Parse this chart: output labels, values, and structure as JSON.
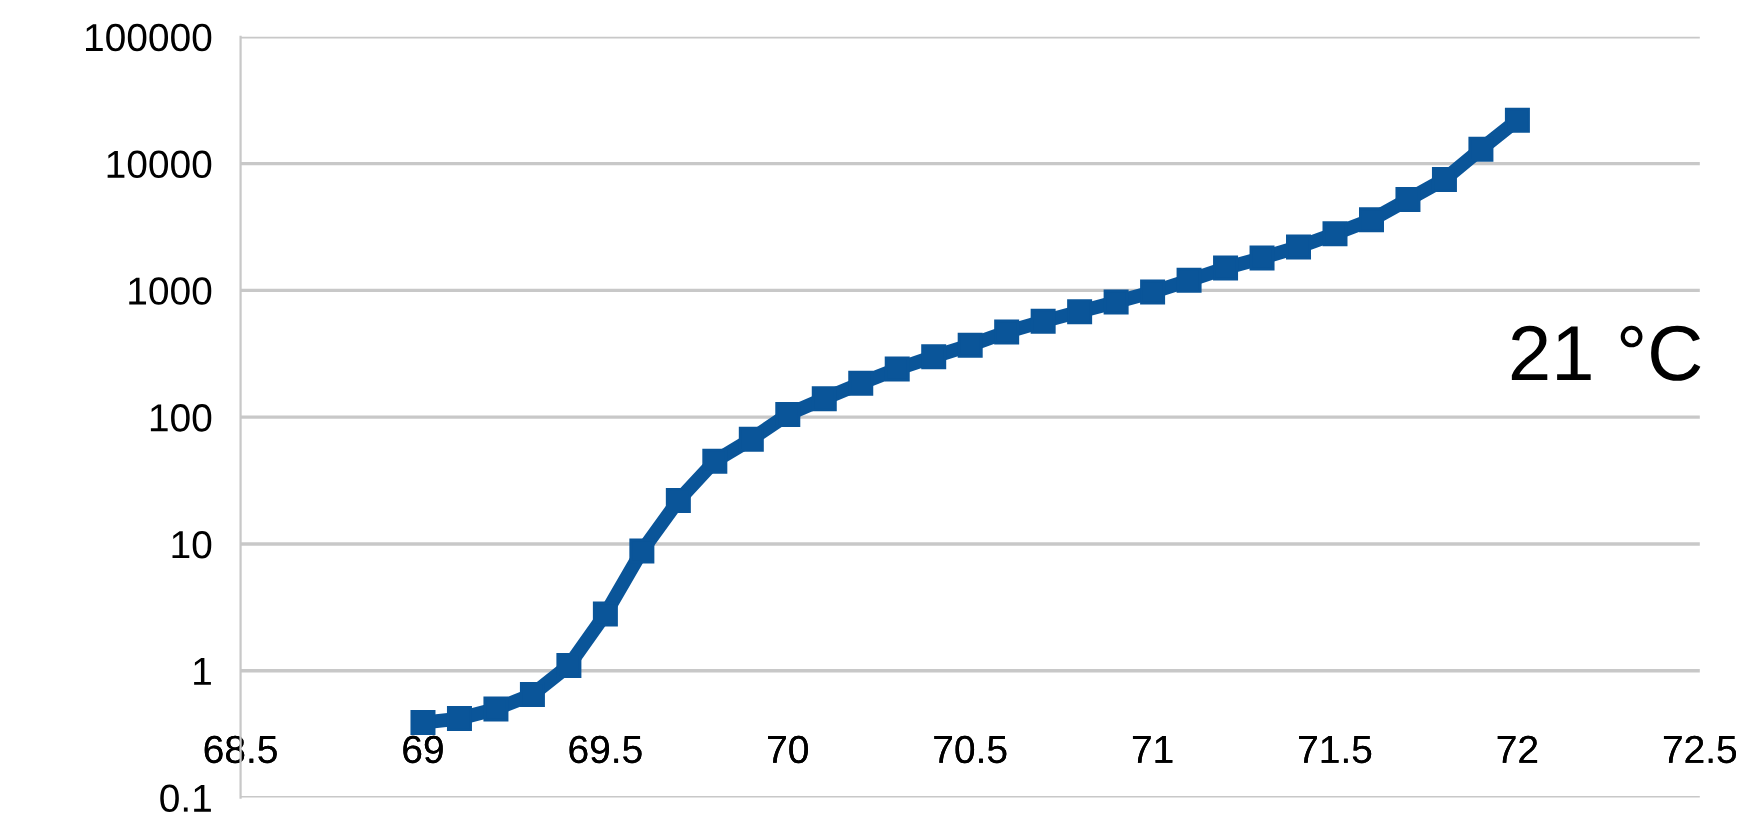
{
  "chart_data": {
    "type": "line",
    "x": [
      69.0,
      69.1,
      69.2,
      69.3,
      69.4,
      69.5,
      69.6,
      69.7,
      69.8,
      69.9,
      70.0,
      70.1,
      70.2,
      70.3,
      70.4,
      70.5,
      70.6,
      70.7,
      70.8,
      70.9,
      71.0,
      71.1,
      71.2,
      71.3,
      71.4,
      71.5,
      71.6,
      71.7,
      71.8,
      71.9,
      72.0
    ],
    "series": [
      {
        "color": "#0a5599",
        "values": [
          0.39,
          0.42,
          0.5,
          0.65,
          1.1,
          2.8,
          8.8,
          22,
          45,
          67,
          105,
          140,
          185,
          240,
          300,
          370,
          470,
          570,
          680,
          810,
          970,
          1200,
          1500,
          1800,
          2200,
          2800,
          3600,
          5200,
          7500,
          13000,
          22000
        ]
      }
    ],
    "log": "y",
    "marker": "square",
    "line_style": "solid",
    "grid": "y",
    "legend": false,
    "xlim": [
      68.5,
      72.5
    ],
    "xticks": [
      68.5,
      69,
      69.5,
      70,
      70.5,
      71,
      71.5,
      72,
      72.5
    ],
    "ylim": [
      0.1,
      100000
    ],
    "yticks": [
      0.1,
      1,
      10,
      100,
      1000,
      10000,
      100000
    ],
    "annotations": [
      "21 °C"
    ]
  }
}
